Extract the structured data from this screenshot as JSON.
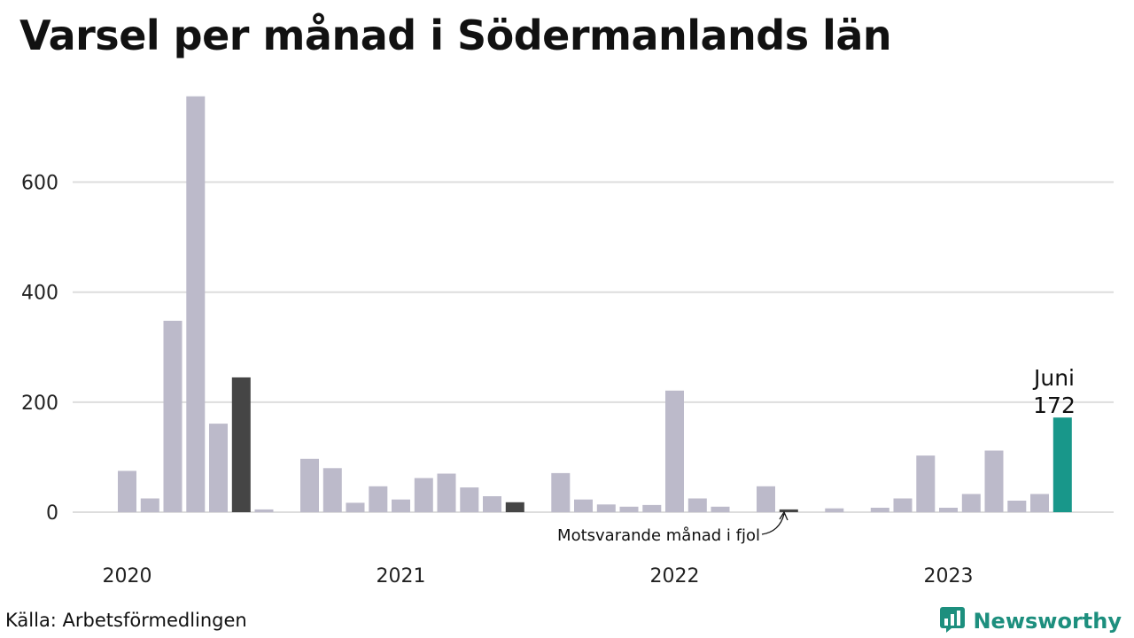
{
  "title": "Varsel per månad i Södermanlands län",
  "source": "Källa: Arbetsförmedlingen",
  "brand": {
    "name": "Newsworthy",
    "icon": "newsworthy-logo-icon"
  },
  "colors": {
    "default": "#bcbaca",
    "same_month": "#454545",
    "current": "#18978a",
    "grid": "#dddddd"
  },
  "annotations": {
    "current_month_label": "Juni",
    "current_value_label": "172",
    "last_year_note": "Motsvarande månad i fjol"
  },
  "chart_data": {
    "type": "bar",
    "title": "Varsel per månad i Södermanlands län",
    "xlabel": "",
    "ylabel": "",
    "ylim": [
      0,
      770
    ],
    "yticks": [
      0,
      200,
      400,
      600
    ],
    "grid": true,
    "year_labels": [
      "2020",
      "2021",
      "2022",
      "2023"
    ],
    "categories": [
      "2020-01",
      "2020-02",
      "2020-03",
      "2020-04",
      "2020-05",
      "2020-06",
      "2020-07",
      "2020-08",
      "2020-09",
      "2020-10",
      "2020-11",
      "2020-12",
      "2021-01",
      "2021-02",
      "2021-03",
      "2021-04",
      "2021-05",
      "2021-06",
      "2021-07",
      "2021-08",
      "2021-09",
      "2021-10",
      "2021-11",
      "2021-12",
      "2022-01",
      "2022-02",
      "2022-03",
      "2022-04",
      "2022-05",
      "2022-06",
      "2022-07",
      "2022-08",
      "2022-09",
      "2022-10",
      "2022-11",
      "2022-12",
      "2023-01",
      "2023-02",
      "2023-03",
      "2023-04",
      "2023-05",
      "2023-06"
    ],
    "values": [
      75,
      25,
      348,
      756,
      161,
      245,
      5,
      0,
      97,
      80,
      17,
      47,
      23,
      62,
      70,
      45,
      29,
      18,
      0,
      71,
      23,
      14,
      10,
      13,
      221,
      25,
      10,
      0,
      47,
      5,
      0,
      7,
      0,
      8,
      25,
      103,
      8,
      33,
      112,
      21,
      33,
      172
    ],
    "highlight": {
      "current_index": 41,
      "same_month_indices": [
        5,
        17,
        29
      ]
    }
  }
}
